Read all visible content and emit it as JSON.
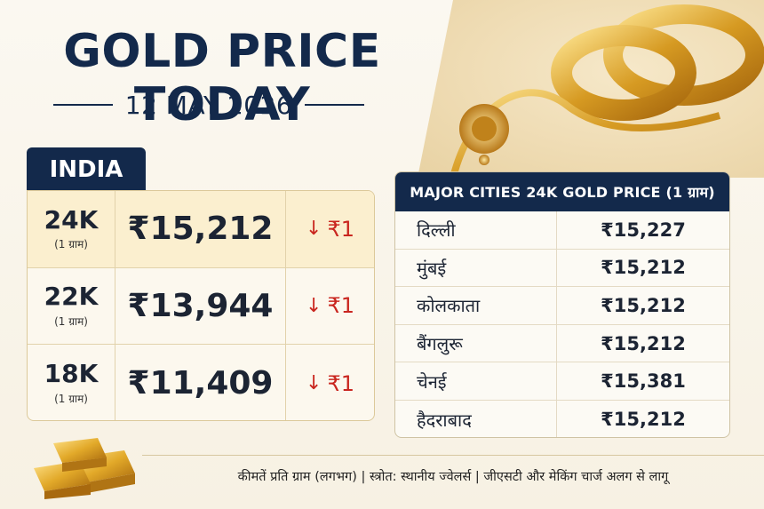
{
  "header": {
    "title": "GOLD PRICE TODAY",
    "date": "12 MAY 2026"
  },
  "india": {
    "tab_label": "INDIA",
    "rows": [
      {
        "karat": "24K",
        "unit": "(1 ग्राम)",
        "price": "₹15,212",
        "change": "₹1",
        "direction": "down"
      },
      {
        "karat": "22K",
        "unit": "(1 ग्राम)",
        "price": "₹13,944",
        "change": "₹1",
        "direction": "down"
      },
      {
        "karat": "18K",
        "unit": "(1 ग्राम)",
        "price": "₹11,409",
        "change": "₹1",
        "direction": "down"
      }
    ]
  },
  "cities": {
    "header": "MAJOR CITIES 24K GOLD PRICE (1 ग्राम)",
    "rows": [
      {
        "city": "दिल्ली",
        "price": "₹15,227"
      },
      {
        "city": "मुंबई",
        "price": "₹15,212"
      },
      {
        "city": "कोलकाता",
        "price": "₹15,212"
      },
      {
        "city": "बैंगलुरू",
        "price": "₹15,212"
      },
      {
        "city": "चेनई",
        "price": "₹15,381"
      },
      {
        "city": "हैदराबाद",
        "price": "₹15,212"
      }
    ]
  },
  "footer": {
    "note": "कीमतें प्रति ग्राम (लगभग) | स्त्रोत: स्थानीय ज्वेलर्स | जीएसटी और मेकिंग चार्ज अलग से लागू"
  },
  "icons": {
    "down_arrow": "arrow-down-icon",
    "gold_bars": "gold-bars-icon",
    "jewelry": "gold-jewelry-image"
  },
  "colors": {
    "navy": "#13294b",
    "down_red": "#c9261f",
    "gold": "#d9a52b"
  }
}
